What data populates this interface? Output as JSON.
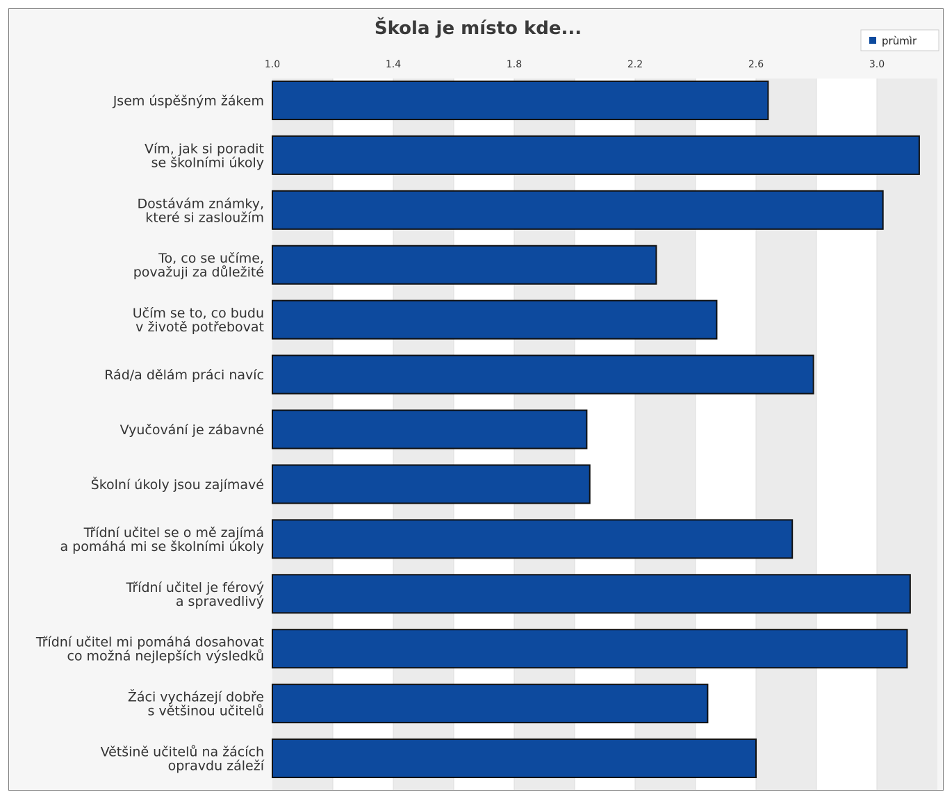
{
  "chart_data": {
    "type": "bar",
    "orientation": "horizontal",
    "title": "Škola je místo kde...",
    "categories": [
      [
        "Jsem úspěšným žákem"
      ],
      [
        "Vím, jak si poradit",
        "se školními úkoly"
      ],
      [
        "Dostávám známky,",
        "které si zasloužím"
      ],
      [
        "To, co se učíme,",
        "považuji za důležité"
      ],
      [
        "Učím se to, co budu",
        "v životě potřebovat"
      ],
      [
        "Rád/a dělám práci navíc"
      ],
      [
        "Vyučování je zábavné"
      ],
      [
        "Školní úkoly jsou zajímavé"
      ],
      [
        "Třídní učitel se o mě zajímá",
        "a pomáhá mi se školními úkoly"
      ],
      [
        "Třídní učitel je férový",
        "a spravedlivý"
      ],
      [
        "Třídní učitel mi pomáhá dosahovat",
        "co možná nejlepších výsledků"
      ],
      [
        "Žáci vycházejí dobře",
        "s většinou učitelů"
      ],
      [
        "Většině učitelů na žácích",
        "opravdu záleží"
      ]
    ],
    "series": [
      {
        "name": "prùmìr",
        "color": "#0d4a9e",
        "values": [
          2.64,
          3.14,
          3.02,
          2.27,
          2.47,
          2.79,
          2.04,
          2.05,
          2.72,
          3.11,
          3.1,
          2.44,
          2.6
        ]
      }
    ],
    "xlim": [
      1.0,
      3.2
    ],
    "xticks": [
      "1.0",
      "1.4",
      "1.8",
      "2.2",
      "2.6",
      "3.0"
    ],
    "xtick_values": [
      1.0,
      1.4,
      1.8,
      2.2,
      2.6,
      3.0
    ],
    "grid": true,
    "legend_position": "top-right"
  }
}
